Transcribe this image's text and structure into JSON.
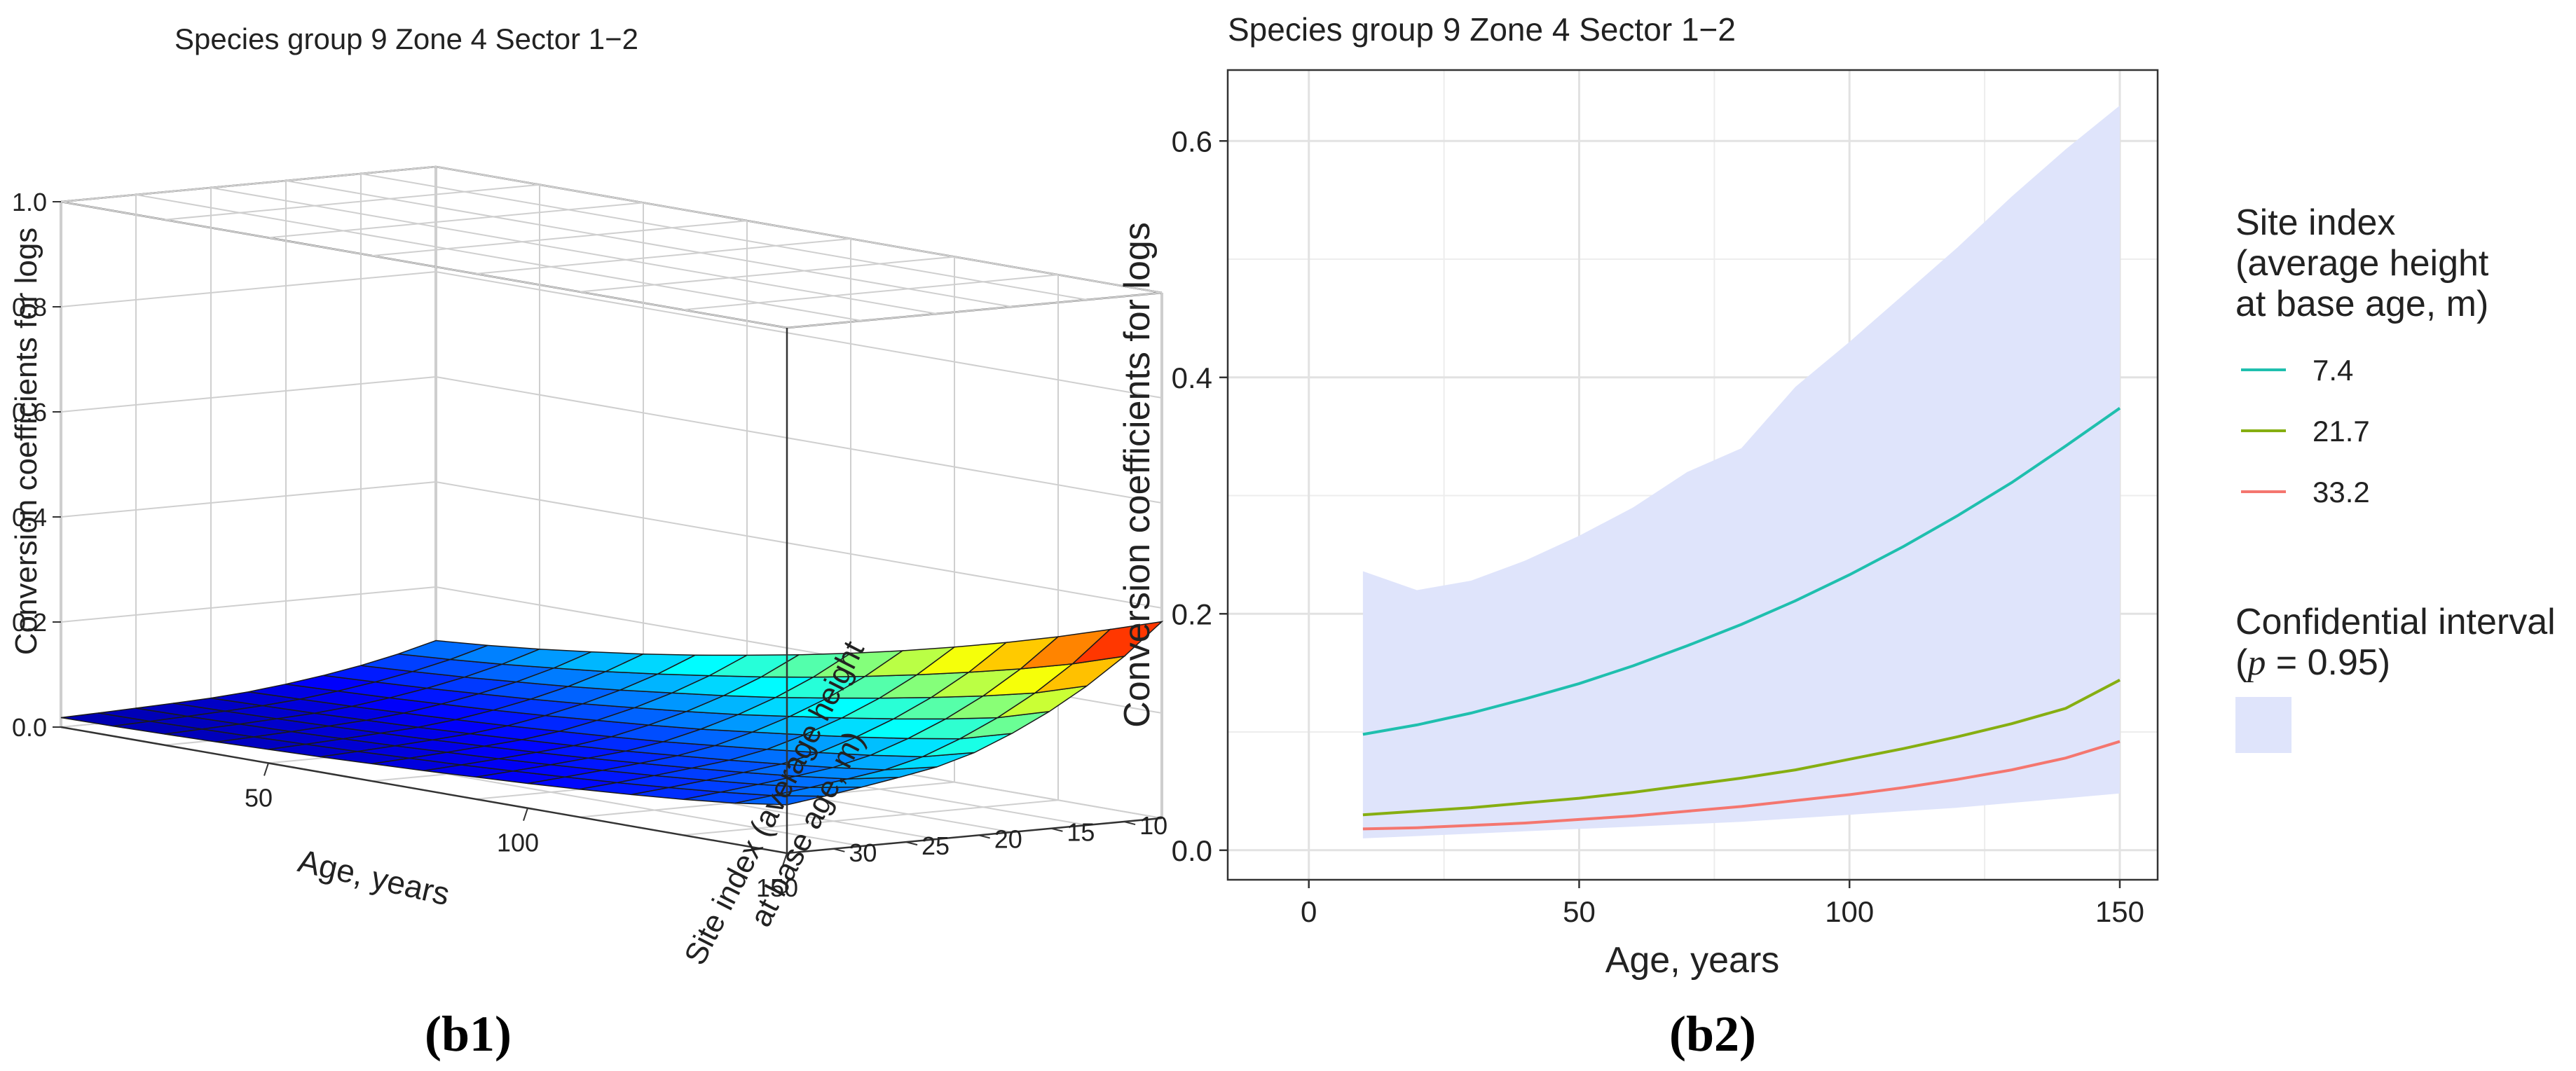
{
  "panels": {
    "left": {
      "title": "Species group 9   Zone 4   Sector 1−2",
      "caption": "(b1)"
    },
    "right": {
      "title": "Species group 9   Zone 4   Sector 1−2",
      "caption": "(b2)"
    }
  },
  "chart_data": [
    {
      "type": "surface",
      "title": "Species group 9   Zone 4   Sector 1−2",
      "xlabel": "Age, years",
      "ylabel": "Site index (average height",
      "ylabel2": "at base age, m)",
      "zlabel": "Conversion coefficients for logs",
      "x_ticks": [
        "50",
        "100",
        "150"
      ],
      "y_ticks": [
        "10",
        "15",
        "20",
        "25",
        "30"
      ],
      "z_ticks": [
        "0.0",
        "0.2",
        "0.4",
        "0.6",
        "0.8",
        "1.0"
      ],
      "xlim": [
        10,
        150
      ],
      "ylim": [
        7.4,
        33.2
      ],
      "zlim": [
        0,
        1
      ],
      "grid": true,
      "colormap": "jet",
      "surface": {
        "age_min": 10,
        "age_max": 150,
        "si_min": 7.4,
        "si_max": 33.2,
        "z_at_age_min_si_min": 0.098,
        "z_at_age_max_si_min": 0.374,
        "z_at_age_min_si_max": 0.018,
        "z_at_age_max_si_max": 0.092,
        "note": "z decreases with site index, increases with age"
      }
    },
    {
      "type": "line",
      "title": "Species group 9   Zone 4   Sector 1−2",
      "xlabel": "Age, years",
      "ylabel": "Conversion coefficients for logs",
      "xlim": [
        -15,
        157
      ],
      "ylim": [
        -0.025,
        0.66
      ],
      "x_ticks": [
        "0",
        "50",
        "100",
        "150"
      ],
      "y_ticks": [
        "0.0",
        "0.2",
        "0.4",
        "0.6"
      ],
      "grid": true,
      "legend_title": [
        "Site index",
        "(average height",
        "at base age, m)"
      ],
      "legend_position": "right",
      "x": [
        10,
        20,
        30,
        40,
        50,
        60,
        70,
        80,
        90,
        100,
        110,
        120,
        130,
        140,
        150
      ],
      "series": [
        {
          "name": "7.4",
          "color": "#1fbfae",
          "values": [
            0.098,
            0.106,
            0.116,
            0.128,
            0.141,
            0.156,
            0.173,
            0.191,
            0.211,
            0.233,
            0.257,
            0.283,
            0.311,
            0.342,
            0.374
          ]
        },
        {
          "name": "21.7",
          "color": "#86ae11",
          "values": [
            0.03,
            0.033,
            0.036,
            0.04,
            0.044,
            0.049,
            0.055,
            0.061,
            0.068,
            0.077,
            0.086,
            0.096,
            0.107,
            0.12,
            0.144
          ]
        },
        {
          "name": "33.2",
          "color": "#f4766f",
          "values": [
            0.018,
            0.019,
            0.021,
            0.023,
            0.026,
            0.029,
            0.033,
            0.037,
            0.042,
            0.047,
            0.053,
            0.06,
            0.068,
            0.078,
            0.092
          ]
        }
      ],
      "band": {
        "name": "Confidential interval",
        "name2": "(p = 0.95)",
        "p_symbol": "p",
        "p_rest": " = 0.95)",
        "color": "#dfe4fb",
        "x": [
          10,
          20,
          30,
          40,
          50,
          60,
          70,
          80,
          90,
          100,
          110,
          120,
          130,
          140,
          150
        ],
        "upper": [
          0.236,
          0.22,
          0.228,
          0.245,
          0.266,
          0.29,
          0.32,
          0.34,
          0.392,
          0.43,
          0.47,
          0.51,
          0.553,
          0.593,
          0.63
        ],
        "lower": [
          0.01,
          0.012,
          0.014,
          0.016,
          0.018,
          0.02,
          0.022,
          0.024,
          0.027,
          0.03,
          0.033,
          0.036,
          0.04,
          0.044,
          0.048
        ]
      }
    }
  ]
}
